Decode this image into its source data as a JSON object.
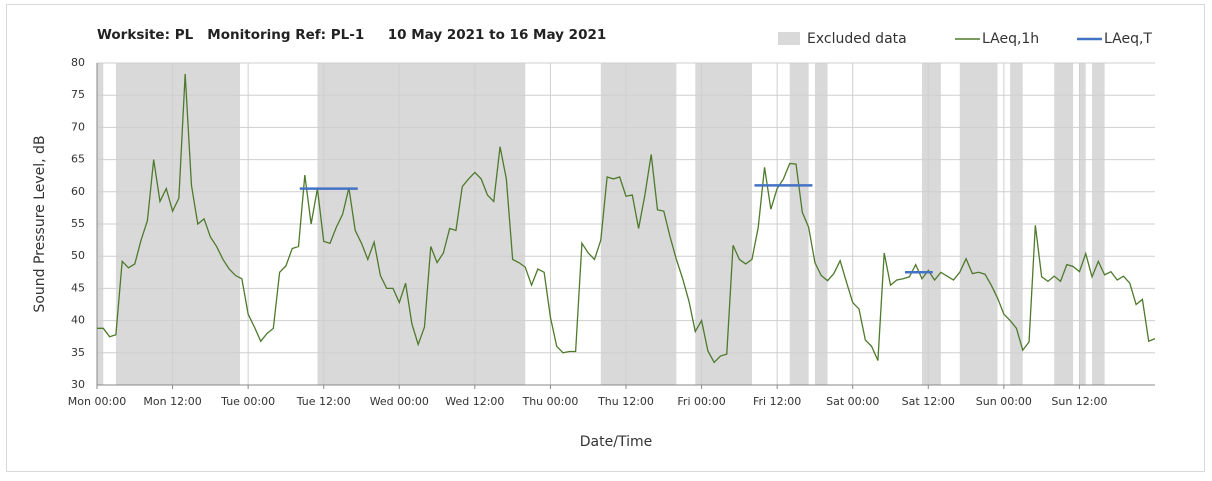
{
  "chart_data": {
    "type": "line",
    "title": "Worksite: PL   Monitoring Ref: PL-1     10 May 2021 to 16 May 2021",
    "x_label": "Date/Time",
    "y_label": "Sound Pressure Level, dB",
    "xlim": [
      0,
      168
    ],
    "xticks": [
      {
        "value": 0,
        "label": "Mon 00:00"
      },
      {
        "value": 12,
        "label": "Mon 12:00"
      },
      {
        "value": 24,
        "label": "Tue 00:00"
      },
      {
        "value": 36,
        "label": "Tue 12:00"
      },
      {
        "value": 48,
        "label": "Wed 00:00"
      },
      {
        "value": 60,
        "label": "Wed 12:00"
      },
      {
        "value": 72,
        "label": "Thu 00:00"
      },
      {
        "value": 84,
        "label": "Thu 12:00"
      },
      {
        "value": 96,
        "label": "Fri 00:00"
      },
      {
        "value": 108,
        "label": "Fri 12:00"
      },
      {
        "value": 120,
        "label": "Sat 00:00"
      },
      {
        "value": 132,
        "label": "Sat 12:00"
      },
      {
        "value": 144,
        "label": "Sun 00:00"
      },
      {
        "value": 156,
        "label": "Sun 12:00"
      }
    ],
    "ylim": [
      30,
      80
    ],
    "yticks": [
      30,
      35,
      40,
      45,
      50,
      55,
      60,
      65,
      70,
      75,
      80
    ],
    "grid": true,
    "excluded": {
      "name": "Excluded data",
      "color": "#d9d9d9",
      "ranges": [
        [
          0,
          1
        ],
        [
          3,
          22.7
        ],
        [
          35,
          68
        ],
        [
          80,
          92
        ],
        [
          95,
          104
        ],
        [
          110,
          113
        ],
        [
          114,
          116
        ],
        [
          131,
          134
        ],
        [
          137,
          143
        ],
        [
          145,
          147
        ],
        [
          152,
          155
        ],
        [
          156,
          157
        ],
        [
          158,
          160
        ]
      ]
    },
    "x": [
      0,
      1,
      2,
      3,
      4,
      5,
      6,
      7,
      8,
      9,
      10,
      11,
      12,
      13,
      14,
      15,
      16,
      17,
      18,
      19,
      20,
      21,
      22,
      23,
      24,
      25,
      26,
      27,
      28,
      29,
      30,
      31,
      32,
      33,
      34,
      35,
      36,
      37,
      38,
      39,
      40,
      41,
      42,
      43,
      44,
      45,
      46,
      47,
      48,
      49,
      50,
      51,
      52,
      53,
      54,
      55,
      56,
      57,
      58,
      59,
      60,
      61,
      62,
      63,
      64,
      65,
      66,
      67,
      68,
      69,
      70,
      71,
      72,
      73,
      74,
      75,
      76,
      77,
      78,
      79,
      80,
      81,
      82,
      83,
      84,
      85,
      86,
      87,
      88,
      89,
      90,
      91,
      92,
      93,
      94,
      95,
      96,
      97,
      98,
      99,
      100,
      101,
      102,
      103,
      104,
      105,
      106,
      107,
      108,
      109,
      110,
      111,
      112,
      113,
      114,
      115,
      116,
      117,
      118,
      119,
      120,
      121,
      122,
      123,
      124,
      125,
      126,
      127,
      128,
      129,
      130,
      131,
      132,
      133,
      134,
      135,
      136,
      137,
      138,
      139,
      140,
      141,
      142,
      143,
      144,
      145,
      146,
      147,
      148,
      149,
      150,
      151,
      152,
      153,
      154,
      155,
      156,
      157,
      158,
      159,
      160,
      161,
      162,
      163,
      164,
      165,
      166,
      167,
      168
    ],
    "series": [
      {
        "name": "LAeq,1h",
        "color": "#4e7a2c",
        "values": [
          38.8,
          38.8,
          37.5,
          37.8,
          49.2,
          48.2,
          48.8,
          52.5,
          55.5,
          65,
          58.5,
          60.5,
          57,
          59,
          78.3,
          61,
          55,
          55.8,
          53,
          51.5,
          49.5,
          48,
          47,
          46.5,
          41,
          39,
          36.8,
          38,
          38.8,
          47.5,
          48.5,
          51.2,
          51.5,
          62.6,
          55,
          60.5,
          52.3,
          52,
          54.5,
          56.5,
          60.6,
          54,
          52,
          49.5,
          52.2,
          47,
          45,
          45,
          42.8,
          45.8,
          39.5,
          36.3,
          39,
          51.5,
          49,
          50.5,
          54.3,
          54,
          60.8,
          62,
          63,
          62,
          59.5,
          58.5,
          67,
          62,
          49.5,
          49,
          48.3,
          45.5,
          48,
          47.5,
          40.5,
          36,
          35,
          35.2,
          35.2,
          52,
          50.5,
          49.5,
          52.5,
          62.3,
          62,
          62.3,
          59.3,
          59.5,
          54.3,
          59.5,
          65.8,
          57.2,
          57,
          53,
          49.5,
          46.5,
          43,
          38.3,
          40,
          35.3,
          33.5,
          34.5,
          34.8,
          51.7,
          49.5,
          48.8,
          49.5,
          54.5,
          63.8,
          57.3,
          60.5,
          62,
          64.4,
          64.3,
          56.8,
          54.5,
          49,
          47,
          46.2,
          47.3,
          49.3,
          46,
          42.8,
          41.8,
          37,
          36,
          33.8,
          50.5,
          45.5,
          46.3,
          46.5,
          46.8,
          48.7,
          46.5,
          47.8,
          46.3,
          47.5,
          46.9,
          46.3,
          47.5,
          49.6,
          47.3,
          47.5,
          47.2,
          45.5,
          43.5,
          41,
          40,
          38.8,
          35.4,
          36.7,
          54.8,
          46.8,
          46.1,
          46.9,
          46.1,
          48.7,
          48.4,
          47.6,
          50.4,
          46.8,
          49.2,
          47.1,
          47.6,
          46.3,
          46.9,
          45.8,
          42.5,
          43.3,
          36.8,
          37.2
        ]
      },
      {
        "name": "LAeq,T",
        "color": "#4472c4",
        "periods": [
          {
            "start": 32.2,
            "end": 41.4,
            "value": 60.5
          },
          {
            "start": 104.4,
            "end": 113.6,
            "value": 61
          },
          {
            "start": 128.3,
            "end": 132.7,
            "value": 47.5
          }
        ]
      }
    ]
  }
}
